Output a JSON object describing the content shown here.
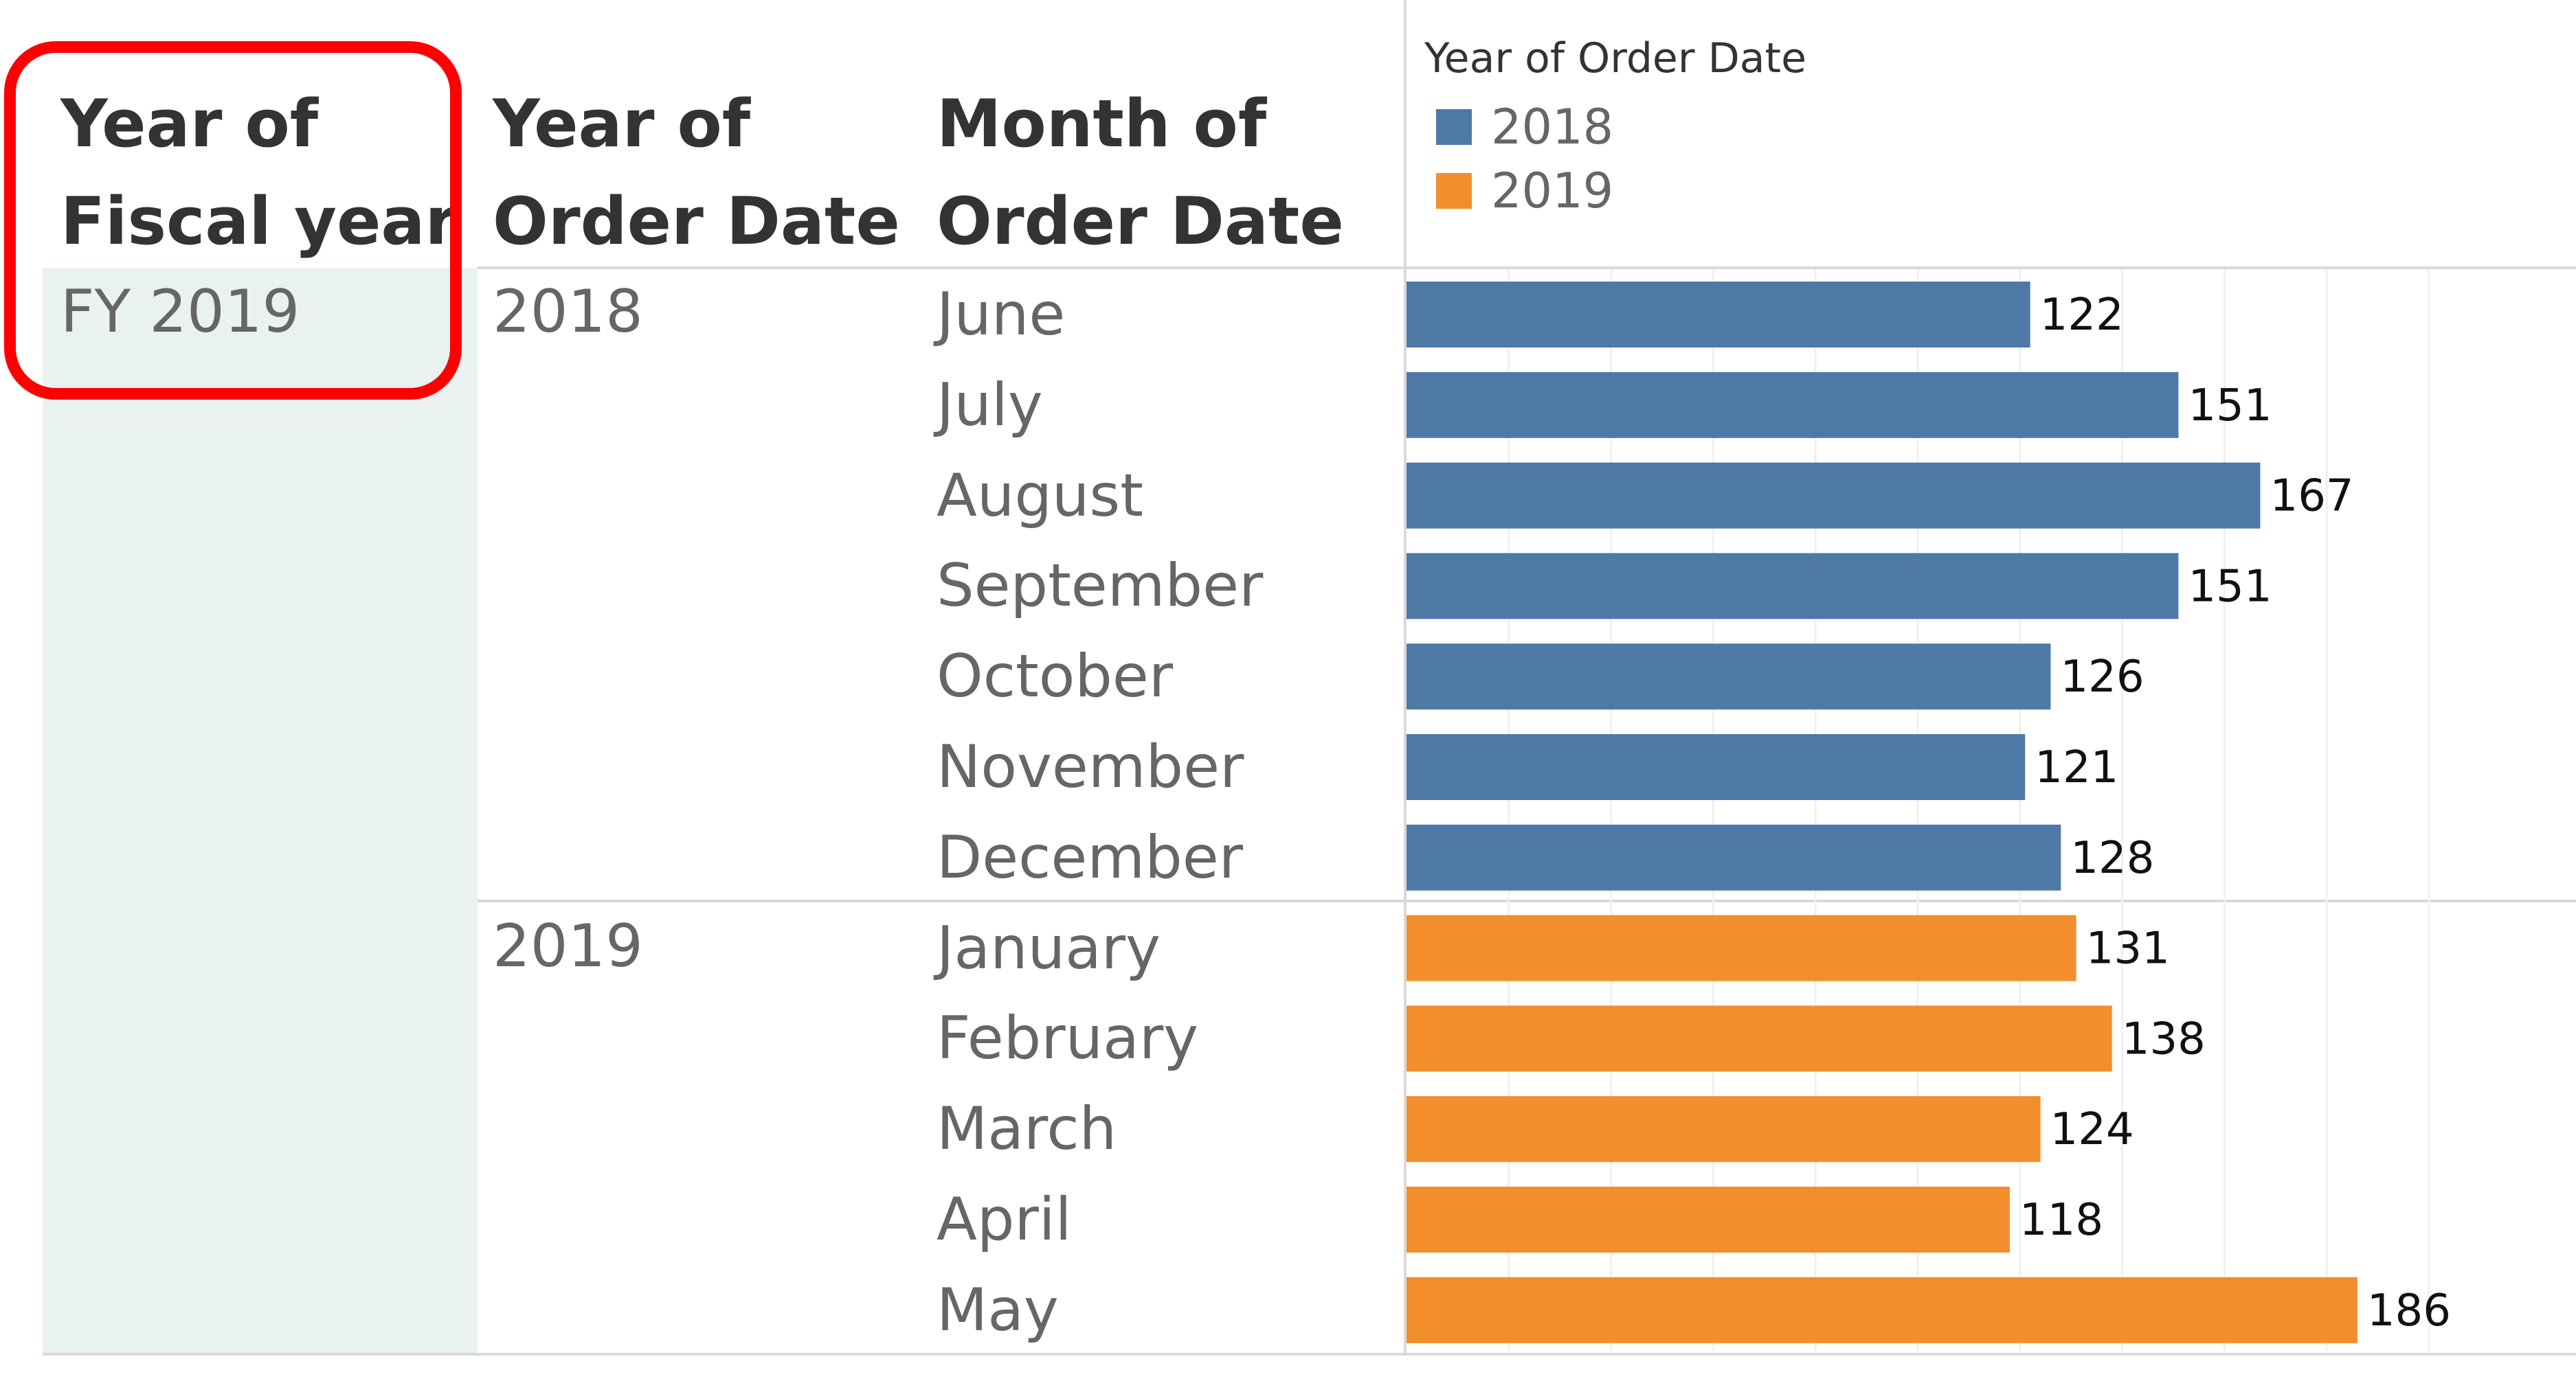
{
  "headers": {
    "fiscal_year": "Year of\nFiscal year",
    "order_year": "Year of\nOrder Date",
    "order_month": "Month of\nOrder Date"
  },
  "fiscal_year_value": "FY 2019",
  "year_groups": [
    "2018",
    "2019"
  ],
  "legend": {
    "title": "Year of Order Date",
    "items": [
      {
        "label": "2018",
        "color": "#4e79a7"
      },
      {
        "label": "2019",
        "color": "#f28e2b"
      }
    ]
  },
  "chart_data": {
    "type": "bar",
    "orientation": "horizontal",
    "categories": [
      "June",
      "July",
      "August",
      "September",
      "October",
      "November",
      "December",
      "January",
      "February",
      "March",
      "April",
      "May"
    ],
    "series": [
      {
        "name": "2018",
        "color": "#4e79a7",
        "values": [
          122,
          151,
          167,
          151,
          126,
          121,
          128,
          null,
          null,
          null,
          null,
          null
        ]
      },
      {
        "name": "2019",
        "color": "#f28e2b",
        "values": [
          null,
          null,
          null,
          null,
          null,
          null,
          null,
          131,
          138,
          124,
          118,
          186
        ]
      }
    ],
    "data_labels": [
      "122",
      "151",
      "167",
      "151",
      "126",
      "121",
      "128",
      "131",
      "138",
      "124",
      "118",
      "186"
    ],
    "xlim": [
      0,
      200
    ],
    "grid": true,
    "legend_position": "top-left"
  }
}
